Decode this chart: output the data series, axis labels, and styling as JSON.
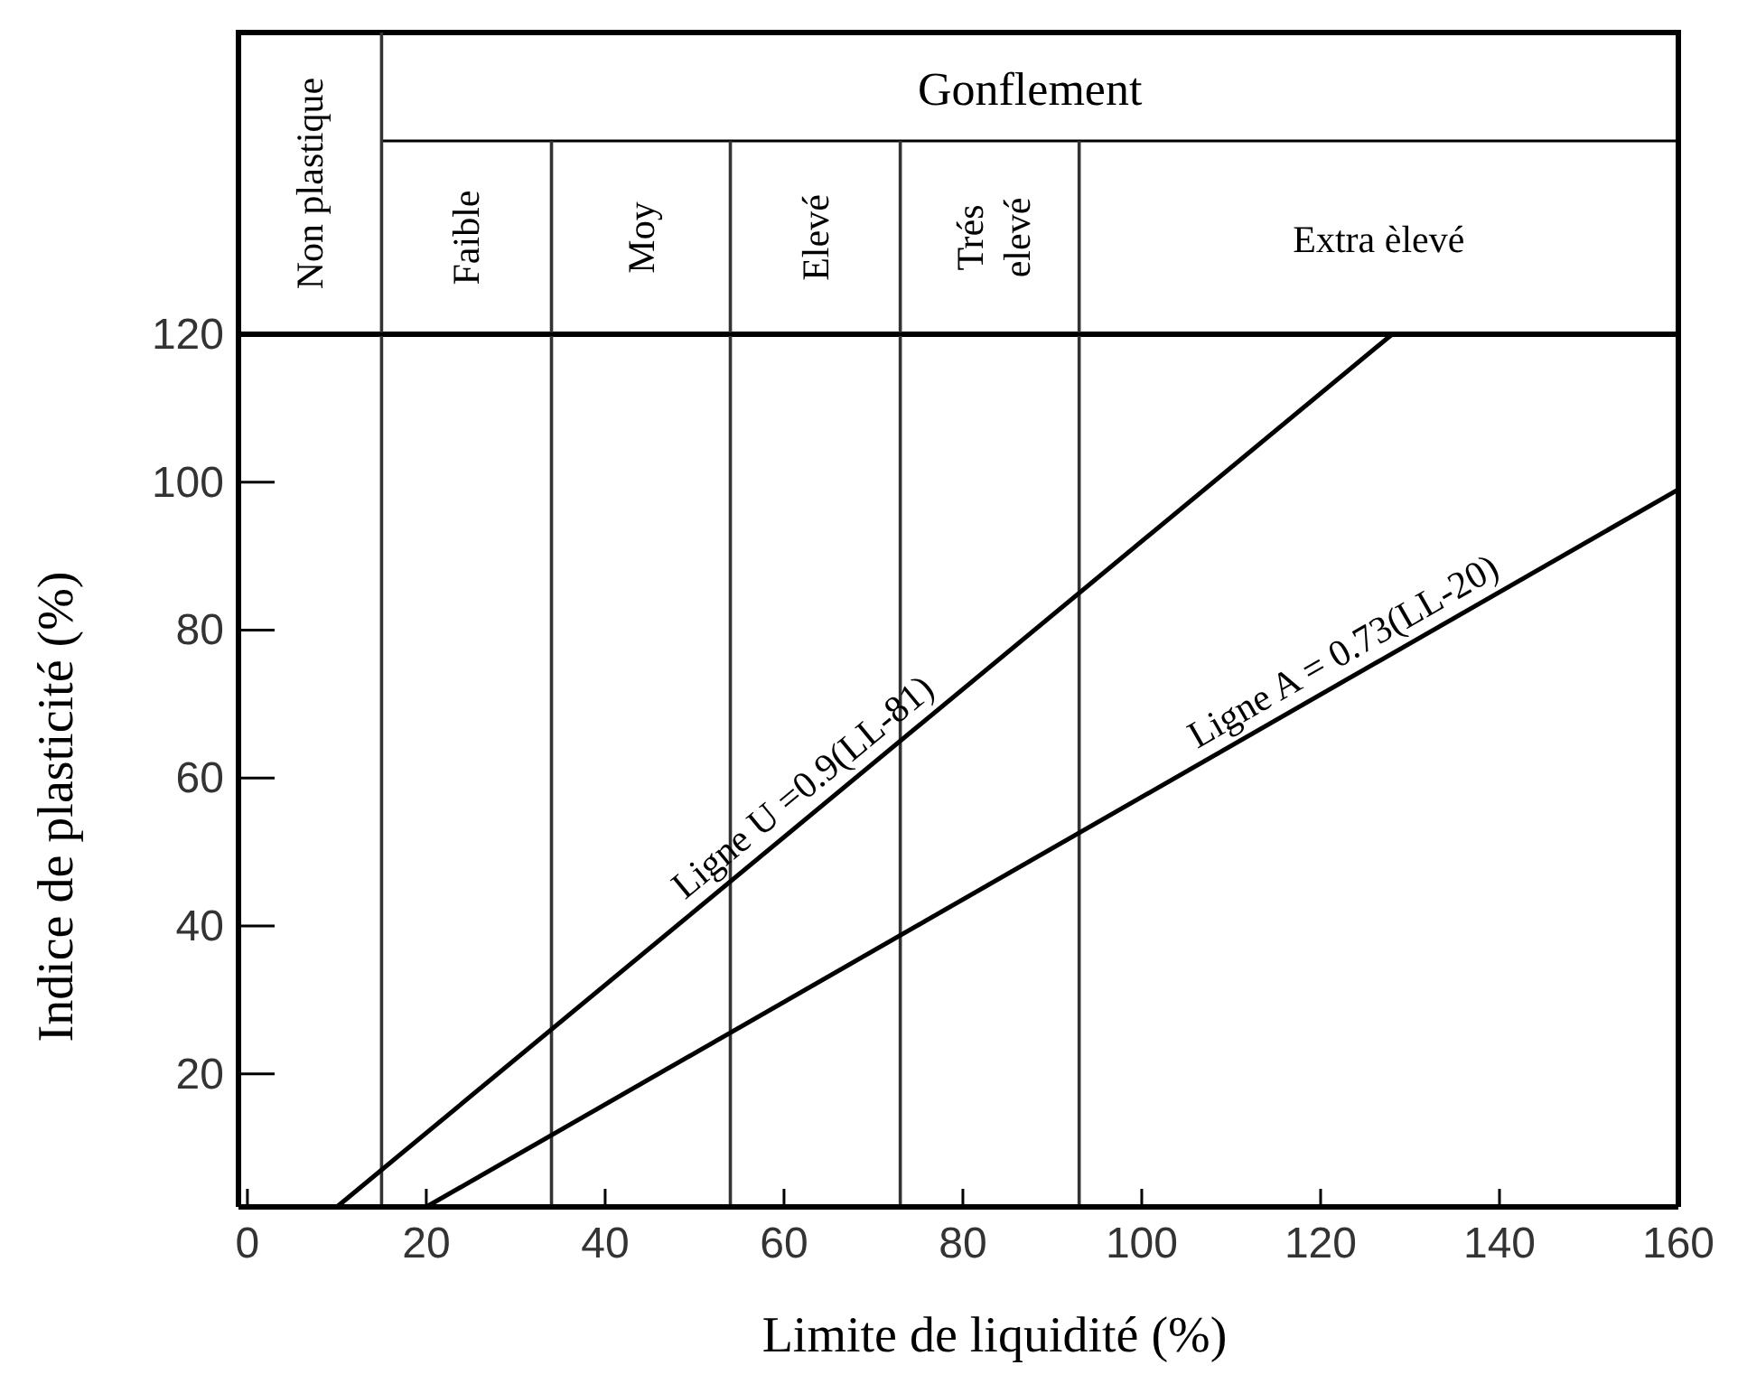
{
  "chart_data": {
    "type": "line",
    "xlabel": "Limite de liquidité  (%)",
    "ylabel": "Indice de plasticité (%)",
    "xlim": [
      -1,
      160
    ],
    "xticks": [
      0,
      20,
      40,
      60,
      80,
      100,
      120,
      140,
      160
    ],
    "ylim": [
      2,
      120
    ],
    "yticks": [
      20,
      40,
      60,
      80,
      100,
      120
    ],
    "series": [
      {
        "color": "#000000",
        "x": [
          10,
          128
        ],
        "values": [
          2,
          120
        ]
      },
      {
        "color": "#000000",
        "x": [
          20,
          160
        ],
        "values": [
          2,
          99
        ]
      }
    ],
    "ref_lines": [
      {
        "axis": "x",
        "value": 15
      },
      {
        "axis": "x",
        "value": 34
      },
      {
        "axis": "x",
        "value": 54
      },
      {
        "axis": "x",
        "value": 73
      },
      {
        "axis": "x",
        "value": 93
      }
    ],
    "annotations": [
      "Non plastique",
      "Gonflement",
      "Faible",
      "Moy",
      "Elevé",
      "Trés\nelevé",
      "Extra èlevé",
      {
        "text": "Ligne U =0.9(LL-81)",
        "x": 64,
        "y": 56
      },
      {
        "text": "Ligne A = 0.73(LL-20)",
        "x": 124,
        "y": 74
      }
    ],
    "grid": false,
    "marker": "none",
    "line_style": "solid"
  }
}
